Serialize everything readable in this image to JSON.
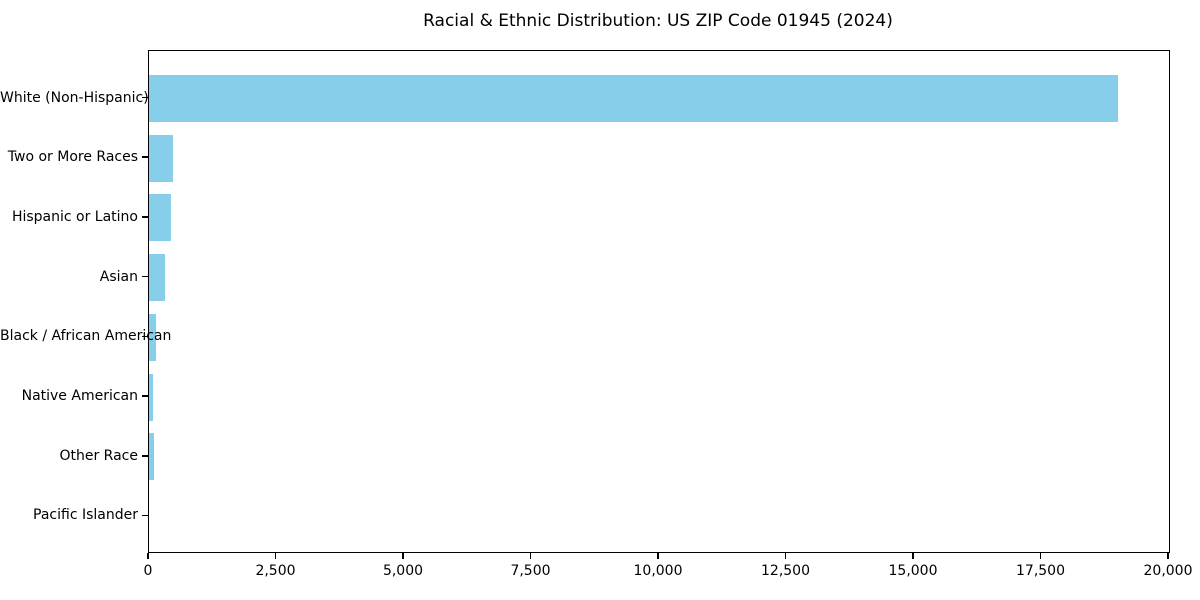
{
  "chart_data": {
    "type": "bar",
    "orientation": "horizontal",
    "title": "Racial & Ethnic Distribution: US ZIP Code 01945 (2024)",
    "categories": [
      "White (Non-Hispanic)",
      "Two or More Races",
      "Hispanic or Latino",
      "Asian",
      "Black / African American",
      "Native American",
      "Other Race",
      "Pacific Islander"
    ],
    "values": [
      19000,
      480,
      440,
      310,
      130,
      80,
      100,
      0
    ],
    "xlabel": "",
    "ylabel": "",
    "xlim": [
      0,
      20000
    ],
    "xticks": [
      0,
      2500,
      5000,
      7500,
      10000,
      12500,
      15000,
      17500,
      20000
    ],
    "xtick_labels": [
      "0",
      "2,500",
      "5,000",
      "7,500",
      "10,000",
      "12,500",
      "15,000",
      "17,500",
      "20,000"
    ],
    "bar_color": "#87CEEB",
    "spine_color": "#000000",
    "grid": false,
    "legend": null
  }
}
